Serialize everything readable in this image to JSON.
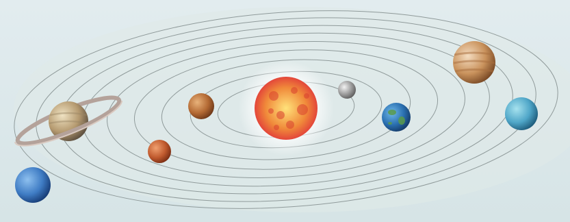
{
  "scene": {
    "background_colors": [
      "#e2ecef",
      "#d6e4e6"
    ],
    "orbit_color": "#8f9a9a",
    "bodies": [
      {
        "name": "sun",
        "kind": "star",
        "colors": [
          "#ffe27a",
          "#f08a3a",
          "#e3463a"
        ]
      },
      {
        "name": "mercury",
        "kind": "planet",
        "colors": [
          "#f2f2f2",
          "#9a9a9a",
          "#5e5e5e"
        ]
      },
      {
        "name": "venus",
        "kind": "planet",
        "colors": [
          "#e8b27a",
          "#b46a34",
          "#6e3818"
        ]
      },
      {
        "name": "earth",
        "kind": "planet",
        "colors": [
          "#6fb8e8",
          "#2a6fb0",
          "#143a68"
        ]
      },
      {
        "name": "mars",
        "kind": "planet",
        "colors": [
          "#f0a070",
          "#c05a2e",
          "#7a2e14"
        ]
      },
      {
        "name": "jupiter",
        "kind": "planet",
        "colors": [
          "#f4dcc0",
          "#c9925c",
          "#7a4a26"
        ]
      },
      {
        "name": "saturn",
        "kind": "planet-with-rings",
        "colors": [
          "#efe2c2",
          "#b59a70",
          "#5e5040"
        ]
      },
      {
        "name": "uranus",
        "kind": "planet",
        "colors": [
          "#a6e2ee",
          "#4fa6c8",
          "#1e5c7c"
        ]
      },
      {
        "name": "neptune",
        "kind": "planet",
        "colors": [
          "#8ec0ef",
          "#3f7cc4",
          "#173c76"
        ]
      }
    ]
  }
}
